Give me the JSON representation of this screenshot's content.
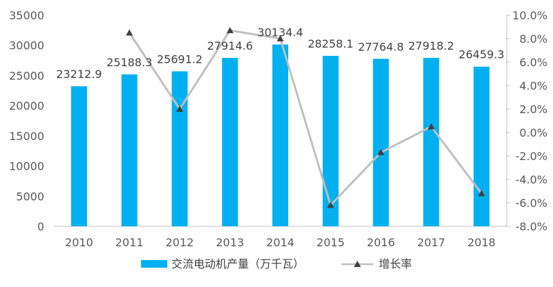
{
  "chart_data": {
    "type": "bar",
    "categories": [
      "2010",
      "2011",
      "2012",
      "2013",
      "2014",
      "2015",
      "2016",
      "2017",
      "2018"
    ],
    "series": [
      {
        "name": "交流电动机产量（万千瓦）",
        "type": "bar",
        "axis": "left",
        "values": [
          23212.9,
          25188.3,
          25691.2,
          27914.6,
          30134.4,
          28258.1,
          27764.8,
          27918.2,
          26459.3
        ],
        "labels": [
          "23212.9",
          "25188.3",
          "25691.2",
          "27914.6",
          "30134.4",
          "28258.1",
          "27764.8",
          "27918.2",
          "26459.3"
        ],
        "color": "#00B0F0"
      },
      {
        "name": "增长率",
        "type": "line",
        "axis": "right",
        "values": [
          null,
          8.5,
          2.0,
          8.7,
          8.0,
          -6.2,
          -1.7,
          0.5,
          -5.2
        ],
        "color": "#BFBFBF",
        "marker_color": "#404040"
      }
    ],
    "ylim": [
      0,
      35000
    ],
    "yticks": [
      "0",
      "5000",
      "10000",
      "15000",
      "20000",
      "25000",
      "30000",
      "35000"
    ],
    "y2lim": [
      -8.0,
      10.0
    ],
    "y2ticks": [
      "-8.0%",
      "-6.0%",
      "-4.0%",
      "-2.0%",
      "0.0%",
      "2.0%",
      "4.0%",
      "6.0%",
      "8.0%",
      "10.0%"
    ],
    "title": "",
    "xlabel": "",
    "ylabel": "",
    "grid": false,
    "legend_position": "bottom"
  }
}
